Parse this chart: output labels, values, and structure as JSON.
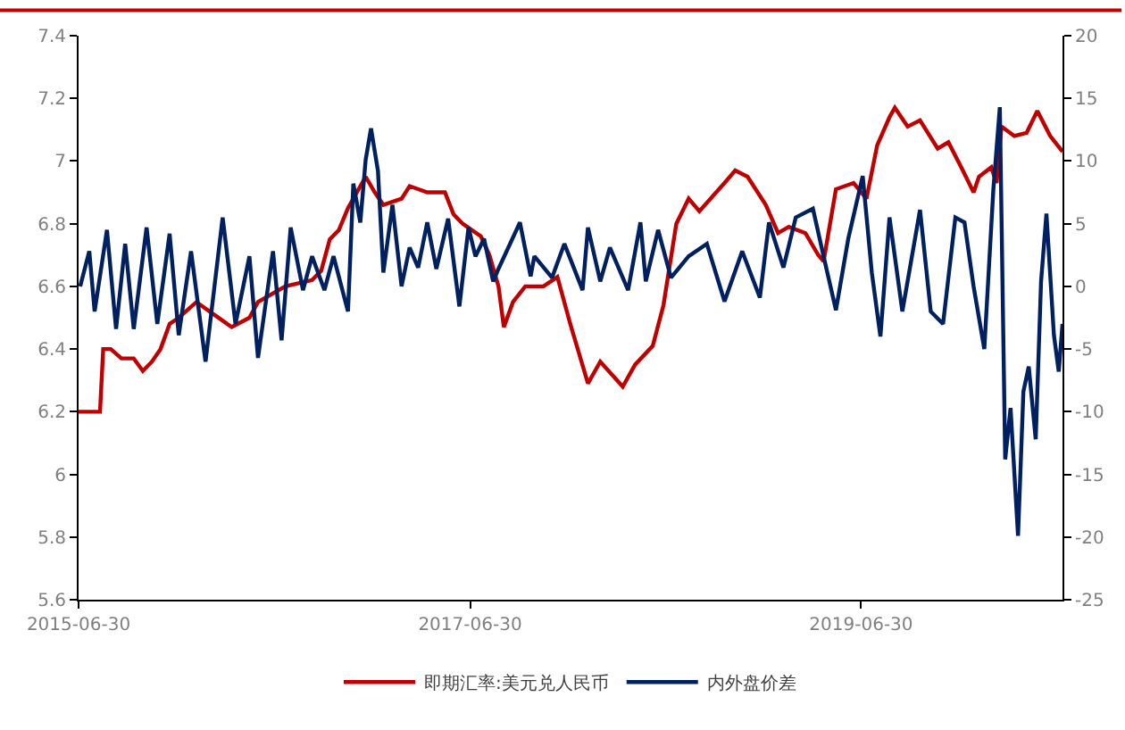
{
  "chart_data": {
    "type": "line",
    "legend": "bottom",
    "marker": "none",
    "line_style": "solid",
    "xlim": [
      "2015-06-30",
      "2020-07-10"
    ],
    "xticks": [
      {
        "value": "2015-06-30",
        "label": "2015-06-30"
      },
      {
        "value": "2017-06-30",
        "label": "2017-06-30"
      },
      {
        "value": "2019-06-30",
        "label": "2019-06-30"
      }
    ],
    "ylim": [
      5.6,
      7.4
    ],
    "yticks": [
      5.6,
      5.8,
      6,
      6.2,
      6.4,
      6.6,
      6.8,
      7,
      7.2,
      7.4
    ],
    "y2lim": [
      -25,
      20
    ],
    "y2ticks": [
      -25,
      -20,
      -15,
      -10,
      -5,
      0,
      5,
      10,
      15,
      20
    ],
    "series": [
      {
        "name": "即期汇率:美元兑人民币",
        "color": "#c00000",
        "x": [
          "2015-06-30",
          "2015-08-09",
          "2015-08-15",
          "2015-08-29",
          "2015-09-18",
          "2015-10-11",
          "2015-10-28",
          "2015-11-14",
          "2015-11-30",
          "2015-12-17",
          "2016-01-03",
          "2016-02-05",
          "2016-04-11",
          "2016-05-14",
          "2016-05-30",
          "2016-07-20",
          "2016-09-08",
          "2016-09-25",
          "2016-10-11",
          "2016-10-28",
          "2016-11-14",
          "2016-12-17",
          "2017-01-03",
          "2017-01-19",
          "2017-02-22",
          "2017-03-09",
          "2017-04-11",
          "2017-05-14",
          "2017-05-30",
          "2017-06-16",
          "2017-07-20",
          "2017-08-05",
          "2017-08-22",
          "2017-09-01",
          "2017-09-18",
          "2017-10-11",
          "2017-11-14",
          "2017-12-10",
          "2018-01-03",
          "2018-02-05",
          "2018-02-28",
          "2018-04-11",
          "2018-05-04",
          "2018-06-06",
          "2018-06-26",
          "2018-07-20",
          "2018-08-12",
          "2018-09-01",
          "2018-10-18",
          "2018-11-07",
          "2018-11-30",
          "2019-01-03",
          "2019-01-26",
          "2019-02-15",
          "2019-03-18",
          "2019-04-11",
          "2019-04-21",
          "2019-05-14",
          "2019-06-16",
          "2019-07-10",
          "2019-07-30",
          "2019-08-22",
          "2019-09-01",
          "2019-09-25",
          "2019-10-18",
          "2019-11-20",
          "2019-12-10",
          "2020-01-03",
          "2020-01-26",
          "2020-02-05",
          "2020-02-28",
          "2020-03-09",
          "2020-03-18",
          "2020-04-11",
          "2020-05-04",
          "2020-05-24",
          "2020-06-17",
          "2020-07-10"
        ],
        "values": [
          6.2,
          6.2,
          6.4,
          6.4,
          6.37,
          6.37,
          6.33,
          6.36,
          6.4,
          6.48,
          6.5,
          6.55,
          6.47,
          6.5,
          6.55,
          6.6,
          6.62,
          6.65,
          6.75,
          6.78,
          6.85,
          6.95,
          6.9,
          6.86,
          6.88,
          6.92,
          6.9,
          6.9,
          6.83,
          6.8,
          6.76,
          6.7,
          6.6,
          6.47,
          6.55,
          6.6,
          6.6,
          6.63,
          6.48,
          6.29,
          6.36,
          6.28,
          6.35,
          6.41,
          6.54,
          6.8,
          6.88,
          6.84,
          6.93,
          6.97,
          6.95,
          6.86,
          6.77,
          6.79,
          6.77,
          6.7,
          6.68,
          6.91,
          6.93,
          6.88,
          7.05,
          7.14,
          7.17,
          7.11,
          7.13,
          7.04,
          7.06,
          6.98,
          6.9,
          6.95,
          6.98,
          6.93,
          7.11,
          7.08,
          7.09,
          7.16,
          7.08,
          7.03
        ]
      },
      {
        "name": "内外盘价差",
        "color": "#002060",
        "axis": "y2",
        "x": [
          "2015-07-03",
          "2015-07-20",
          "2015-07-30",
          "2015-08-22",
          "2015-09-08",
          "2015-09-25",
          "2015-10-11",
          "2015-11-04",
          "2015-11-24",
          "2015-12-17",
          "2016-01-03",
          "2016-01-26",
          "2016-02-22",
          "2016-03-25",
          "2016-04-18",
          "2016-05-14",
          "2016-05-30",
          "2016-06-27",
          "2016-07-13",
          "2016-07-30",
          "2016-08-22",
          "2016-09-08",
          "2016-10-01",
          "2016-10-18",
          "2016-11-14",
          "2016-11-24",
          "2016-12-07",
          "2016-12-17",
          "2016-12-27",
          "2017-01-09",
          "2017-01-19",
          "2017-02-05",
          "2017-02-22",
          "2017-03-09",
          "2017-03-25",
          "2017-04-11",
          "2017-04-28",
          "2017-05-20",
          "2017-06-10",
          "2017-06-27",
          "2017-07-10",
          "2017-07-26",
          "2017-08-12",
          "2017-08-22",
          "2017-10-01",
          "2017-10-21",
          "2017-10-28",
          "2017-11-30",
          "2017-12-23",
          "2018-01-26",
          "2018-02-05",
          "2018-02-28",
          "2018-03-18",
          "2018-04-21",
          "2018-05-14",
          "2018-05-24",
          "2018-06-16",
          "2018-07-10",
          "2018-08-12",
          "2018-09-15",
          "2018-10-18",
          "2018-11-20",
          "2018-12-23",
          "2019-01-09",
          "2019-02-05",
          "2019-02-28",
          "2019-04-01",
          "2019-04-21",
          "2019-05-14",
          "2019-06-06",
          "2019-07-03",
          "2019-07-20",
          "2019-08-05",
          "2019-08-22",
          "2019-09-15",
          "2019-10-18",
          "2019-11-07",
          "2019-11-30",
          "2019-12-23",
          "2020-01-09",
          "2020-01-26",
          "2020-02-15",
          "2020-03-03",
          "2020-03-15",
          "2020-03-25",
          "2020-04-04",
          "2020-04-18",
          "2020-04-28",
          "2020-05-08",
          "2020-05-21",
          "2020-05-31",
          "2020-06-10",
          "2020-06-24",
          "2020-07-03",
          "2020-07-10"
        ],
        "values": [
          0,
          2.8,
          -2,
          4.5,
          -3.4,
          3.4,
          -3.4,
          4.7,
          -3,
          4.2,
          -3.9,
          2.8,
          -6,
          5.5,
          -3,
          2.4,
          -5.7,
          2.8,
          -4.3,
          4.7,
          -0.3,
          2.4,
          -0.3,
          2.4,
          -2,
          8.2,
          5.1,
          10.1,
          12.6,
          9.2,
          1.1,
          6.5,
          0,
          3.1,
          1.5,
          5.1,
          1.4,
          5.4,
          -1.6,
          4.7,
          2.4,
          3.8,
          0.4,
          1.4,
          5.1,
          0.8,
          2.4,
          0.7,
          3.4,
          -0.3,
          4.7,
          0.4,
          3.1,
          -0.3,
          5.1,
          0.4,
          4.5,
          0.7,
          2.4,
          3.4,
          -1.2,
          2.8,
          -0.9,
          5.1,
          1.5,
          5.5,
          6.2,
          2.4,
          -1.9,
          3.8,
          8.8,
          1.1,
          -4,
          5.5,
          -2,
          6.1,
          -2,
          -3,
          5.5,
          5.1,
          0,
          -5,
          7.8,
          14.3,
          -13.8,
          -9.7,
          -19.9,
          -8.4,
          -6.4,
          -12.2,
          0.4,
          5.8,
          -3.9,
          -6.8,
          -3
        ]
      }
    ]
  }
}
